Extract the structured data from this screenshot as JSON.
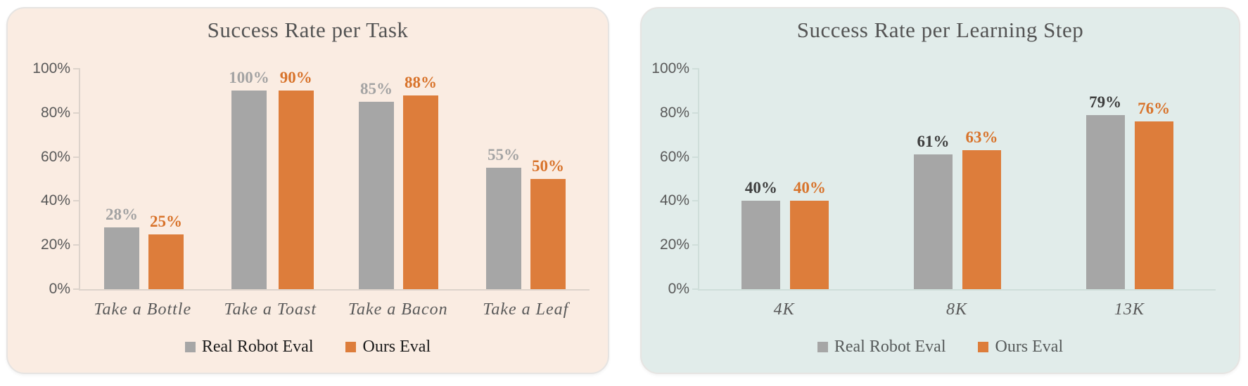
{
  "figure": {
    "background": "#ffffff"
  },
  "chart_data": [
    {
      "type": "bar",
      "title": "Success Rate per Task",
      "categories": [
        "Take a Bottle",
        "Take a Toast",
        "Take a Bacon",
        "Take a Leaf"
      ],
      "series": [
        {
          "name": "Real Robot Eval",
          "values": [
            28,
            100,
            85,
            55
          ],
          "color": "#a6a6a6",
          "label_color": "#a3a3a3"
        },
        {
          "name": "Ours Eval",
          "values": [
            25,
            90,
            88,
            50
          ],
          "color": "#dd7d3b",
          "label_color": "#d8732b"
        }
      ],
      "value_suffix": "%",
      "ylim": [
        0,
        100
      ],
      "ytick_values": [
        0,
        20,
        40,
        60,
        80,
        100
      ],
      "ytick_labels": [
        "0%",
        "20%",
        "40%",
        "60%",
        "80%",
        "100%"
      ],
      "grid": false,
      "legend_position": "bottom",
      "card_bg": "#faece2",
      "axis_color": "#ddd3cb",
      "legend_text_color": "#1b1b1b",
      "title_color": "#545454"
    },
    {
      "type": "bar",
      "title": "Success Rate per Learning Step",
      "categories": [
        "4K",
        "8K",
        "13K"
      ],
      "series": [
        {
          "name": "Real Robot Eval",
          "values": [
            40,
            61,
            79
          ],
          "color": "#a6a6a6",
          "label_color": "#3e3e3e"
        },
        {
          "name": "Ours Eval",
          "values": [
            40,
            63,
            76
          ],
          "color": "#dd7d3b",
          "label_color": "#d8732b"
        }
      ],
      "value_suffix": "%",
      "ylim": [
        0,
        100
      ],
      "ytick_values": [
        0,
        20,
        40,
        60,
        80,
        100
      ],
      "ytick_labels": [
        "0%",
        "20%",
        "40%",
        "60%",
        "80%",
        "100%"
      ],
      "grid": false,
      "legend_position": "bottom",
      "card_bg": "#e1ecea",
      "axis_color": "#cfdeda",
      "legend_text_color": "#565a5a",
      "title_color": "#545454"
    }
  ]
}
